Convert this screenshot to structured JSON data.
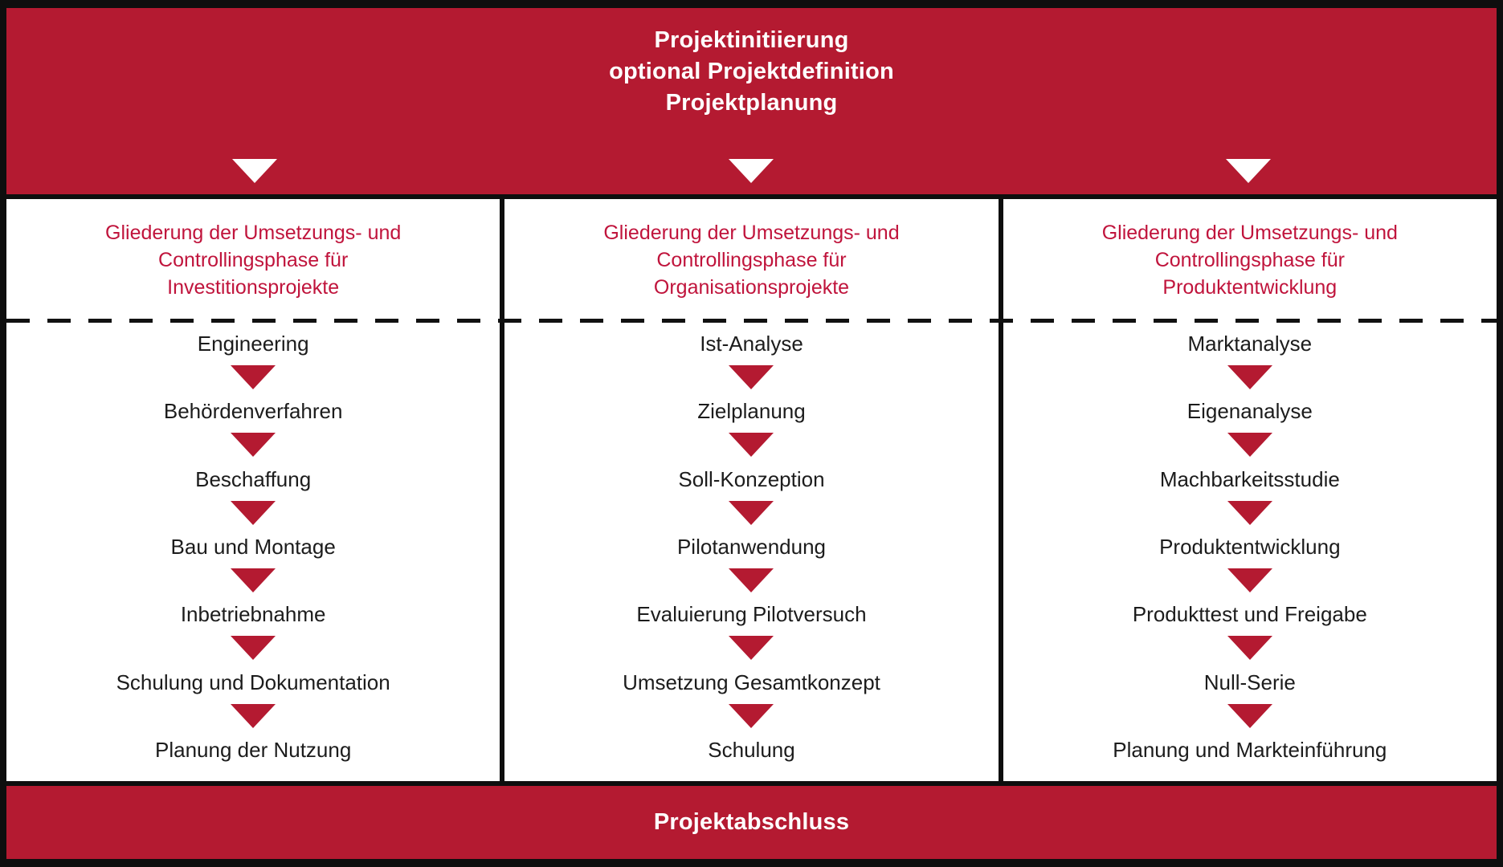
{
  "colors": {
    "red_fill": "#B41A31",
    "red_text": "#C0143C",
    "border_black": "#0E0E0E",
    "text_black": "#1C1C1C"
  },
  "top_banner": {
    "lines": [
      "Projektinitiierung",
      "optional Projektdefinition",
      "Projektplanung"
    ]
  },
  "columns": [
    {
      "heading_lines": [
        "Gliederung der Umsetzungs- und",
        "Controllingsphase für",
        "Investitionsprojekte"
      ],
      "steps": [
        "Engineering",
        "Behördenverfahren",
        "Beschaffung",
        "Bau und Montage",
        "Inbetriebnahme",
        "Schulung und Dokumentation",
        "Planung der Nutzung"
      ]
    },
    {
      "heading_lines": [
        "Gliederung der Umsetzungs- und",
        "Controllingsphase für",
        "Organisationsprojekte"
      ],
      "steps": [
        "Ist-Analyse",
        "Zielplanung",
        "Soll-Konzeption",
        "Pilotanwendung",
        "Evaluierung Pilotversuch",
        "Umsetzung Gesamtkonzept",
        "Schulung"
      ]
    },
    {
      "heading_lines": [
        "Gliederung der Umsetzungs- und",
        "Controllingsphase für",
        "Produktentwicklung"
      ],
      "steps": [
        "Marktanalyse",
        "Eigenanalyse",
        "Machbarkeitsstudie",
        "Produktentwicklung",
        "Produkttest und Freigabe",
        "Null-Serie",
        "Planung und Markteinführung"
      ]
    }
  ],
  "bottom_banner": {
    "label": "Projektabschluss"
  }
}
